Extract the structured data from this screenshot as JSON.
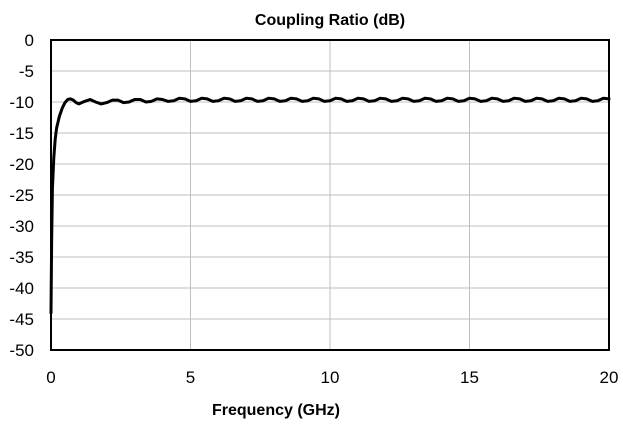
{
  "chart_data": {
    "type": "line",
    "title": "Coupling Ratio (dB)",
    "xlabel": "Frequency  (GHz)",
    "ylabel": "",
    "xlim": [
      0,
      20
    ],
    "ylim": [
      -50,
      0
    ],
    "xticks": [
      0,
      5,
      10,
      15,
      20
    ],
    "yticks": [
      0,
      -5,
      -10,
      -15,
      -20,
      -25,
      -30,
      -35,
      -40,
      -45,
      -50
    ],
    "grid": true,
    "legend": "none",
    "series": [
      {
        "color": "#000000",
        "x": [
          0.0,
          0.02,
          0.05,
          0.1,
          0.15,
          0.2,
          0.3,
          0.4,
          0.5,
          0.6,
          0.7,
          0.8,
          0.9,
          1.0,
          1.2,
          1.4,
          1.6,
          1.8,
          2.0,
          2.2,
          2.4,
          2.6,
          2.8,
          3.0,
          3.2,
          3.4,
          3.6,
          3.8,
          4.0,
          4.2,
          4.4,
          4.6,
          4.8,
          5.0,
          5.2,
          5.4,
          5.6,
          5.8,
          6.0,
          6.2,
          6.4,
          6.6,
          6.8,
          7.0,
          7.2,
          7.4,
          7.6,
          7.8,
          8.0,
          8.2,
          8.4,
          8.6,
          8.8,
          9.0,
          9.2,
          9.4,
          9.6,
          9.8,
          10.0,
          10.2,
          10.4,
          10.6,
          10.8,
          11.0,
          11.2,
          11.4,
          11.6,
          11.8,
          12.0,
          12.2,
          12.4,
          12.6,
          12.8,
          13.0,
          13.2,
          13.4,
          13.6,
          13.8,
          14.0,
          14.2,
          14.4,
          14.6,
          14.8,
          15.0,
          15.2,
          15.4,
          15.6,
          15.8,
          16.0,
          16.2,
          16.4,
          16.6,
          16.8,
          17.0,
          17.2,
          17.4,
          17.6,
          17.8,
          18.0,
          18.2,
          18.4,
          18.6,
          18.8,
          19.0,
          19.2,
          19.4,
          19.6,
          19.8,
          20.0
        ],
        "y": [
          -44,
          -33,
          -24,
          -19,
          -16,
          -14.2,
          -12.3,
          -11.0,
          -10.1,
          -9.6,
          -9.5,
          -9.7,
          -10.1,
          -10.3,
          -9.9,
          -9.6,
          -10.0,
          -10.3,
          -10.1,
          -9.7,
          -9.7,
          -10.1,
          -10.0,
          -9.6,
          -9.6,
          -10.0,
          -9.9,
          -9.5,
          -9.6,
          -9.9,
          -9.8,
          -9.4,
          -9.5,
          -9.9,
          -9.8,
          -9.4,
          -9.5,
          -9.9,
          -9.8,
          -9.4,
          -9.5,
          -9.9,
          -9.8,
          -9.4,
          -9.5,
          -9.9,
          -9.8,
          -9.4,
          -9.5,
          -9.9,
          -9.8,
          -9.4,
          -9.5,
          -9.9,
          -9.8,
          -9.4,
          -9.5,
          -9.9,
          -9.8,
          -9.4,
          -9.5,
          -9.9,
          -9.8,
          -9.4,
          -9.5,
          -9.9,
          -9.8,
          -9.4,
          -9.5,
          -9.9,
          -9.8,
          -9.4,
          -9.5,
          -9.9,
          -9.8,
          -9.4,
          -9.5,
          -9.9,
          -9.8,
          -9.4,
          -9.5,
          -9.9,
          -9.8,
          -9.4,
          -9.5,
          -9.9,
          -9.8,
          -9.4,
          -9.5,
          -9.9,
          -9.8,
          -9.4,
          -9.5,
          -9.9,
          -9.8,
          -9.4,
          -9.5,
          -9.9,
          -9.8,
          -9.4,
          -9.5,
          -9.9,
          -9.8,
          -9.4,
          -9.5,
          -9.9,
          -9.8,
          -9.4,
          -9.5
        ]
      }
    ]
  }
}
